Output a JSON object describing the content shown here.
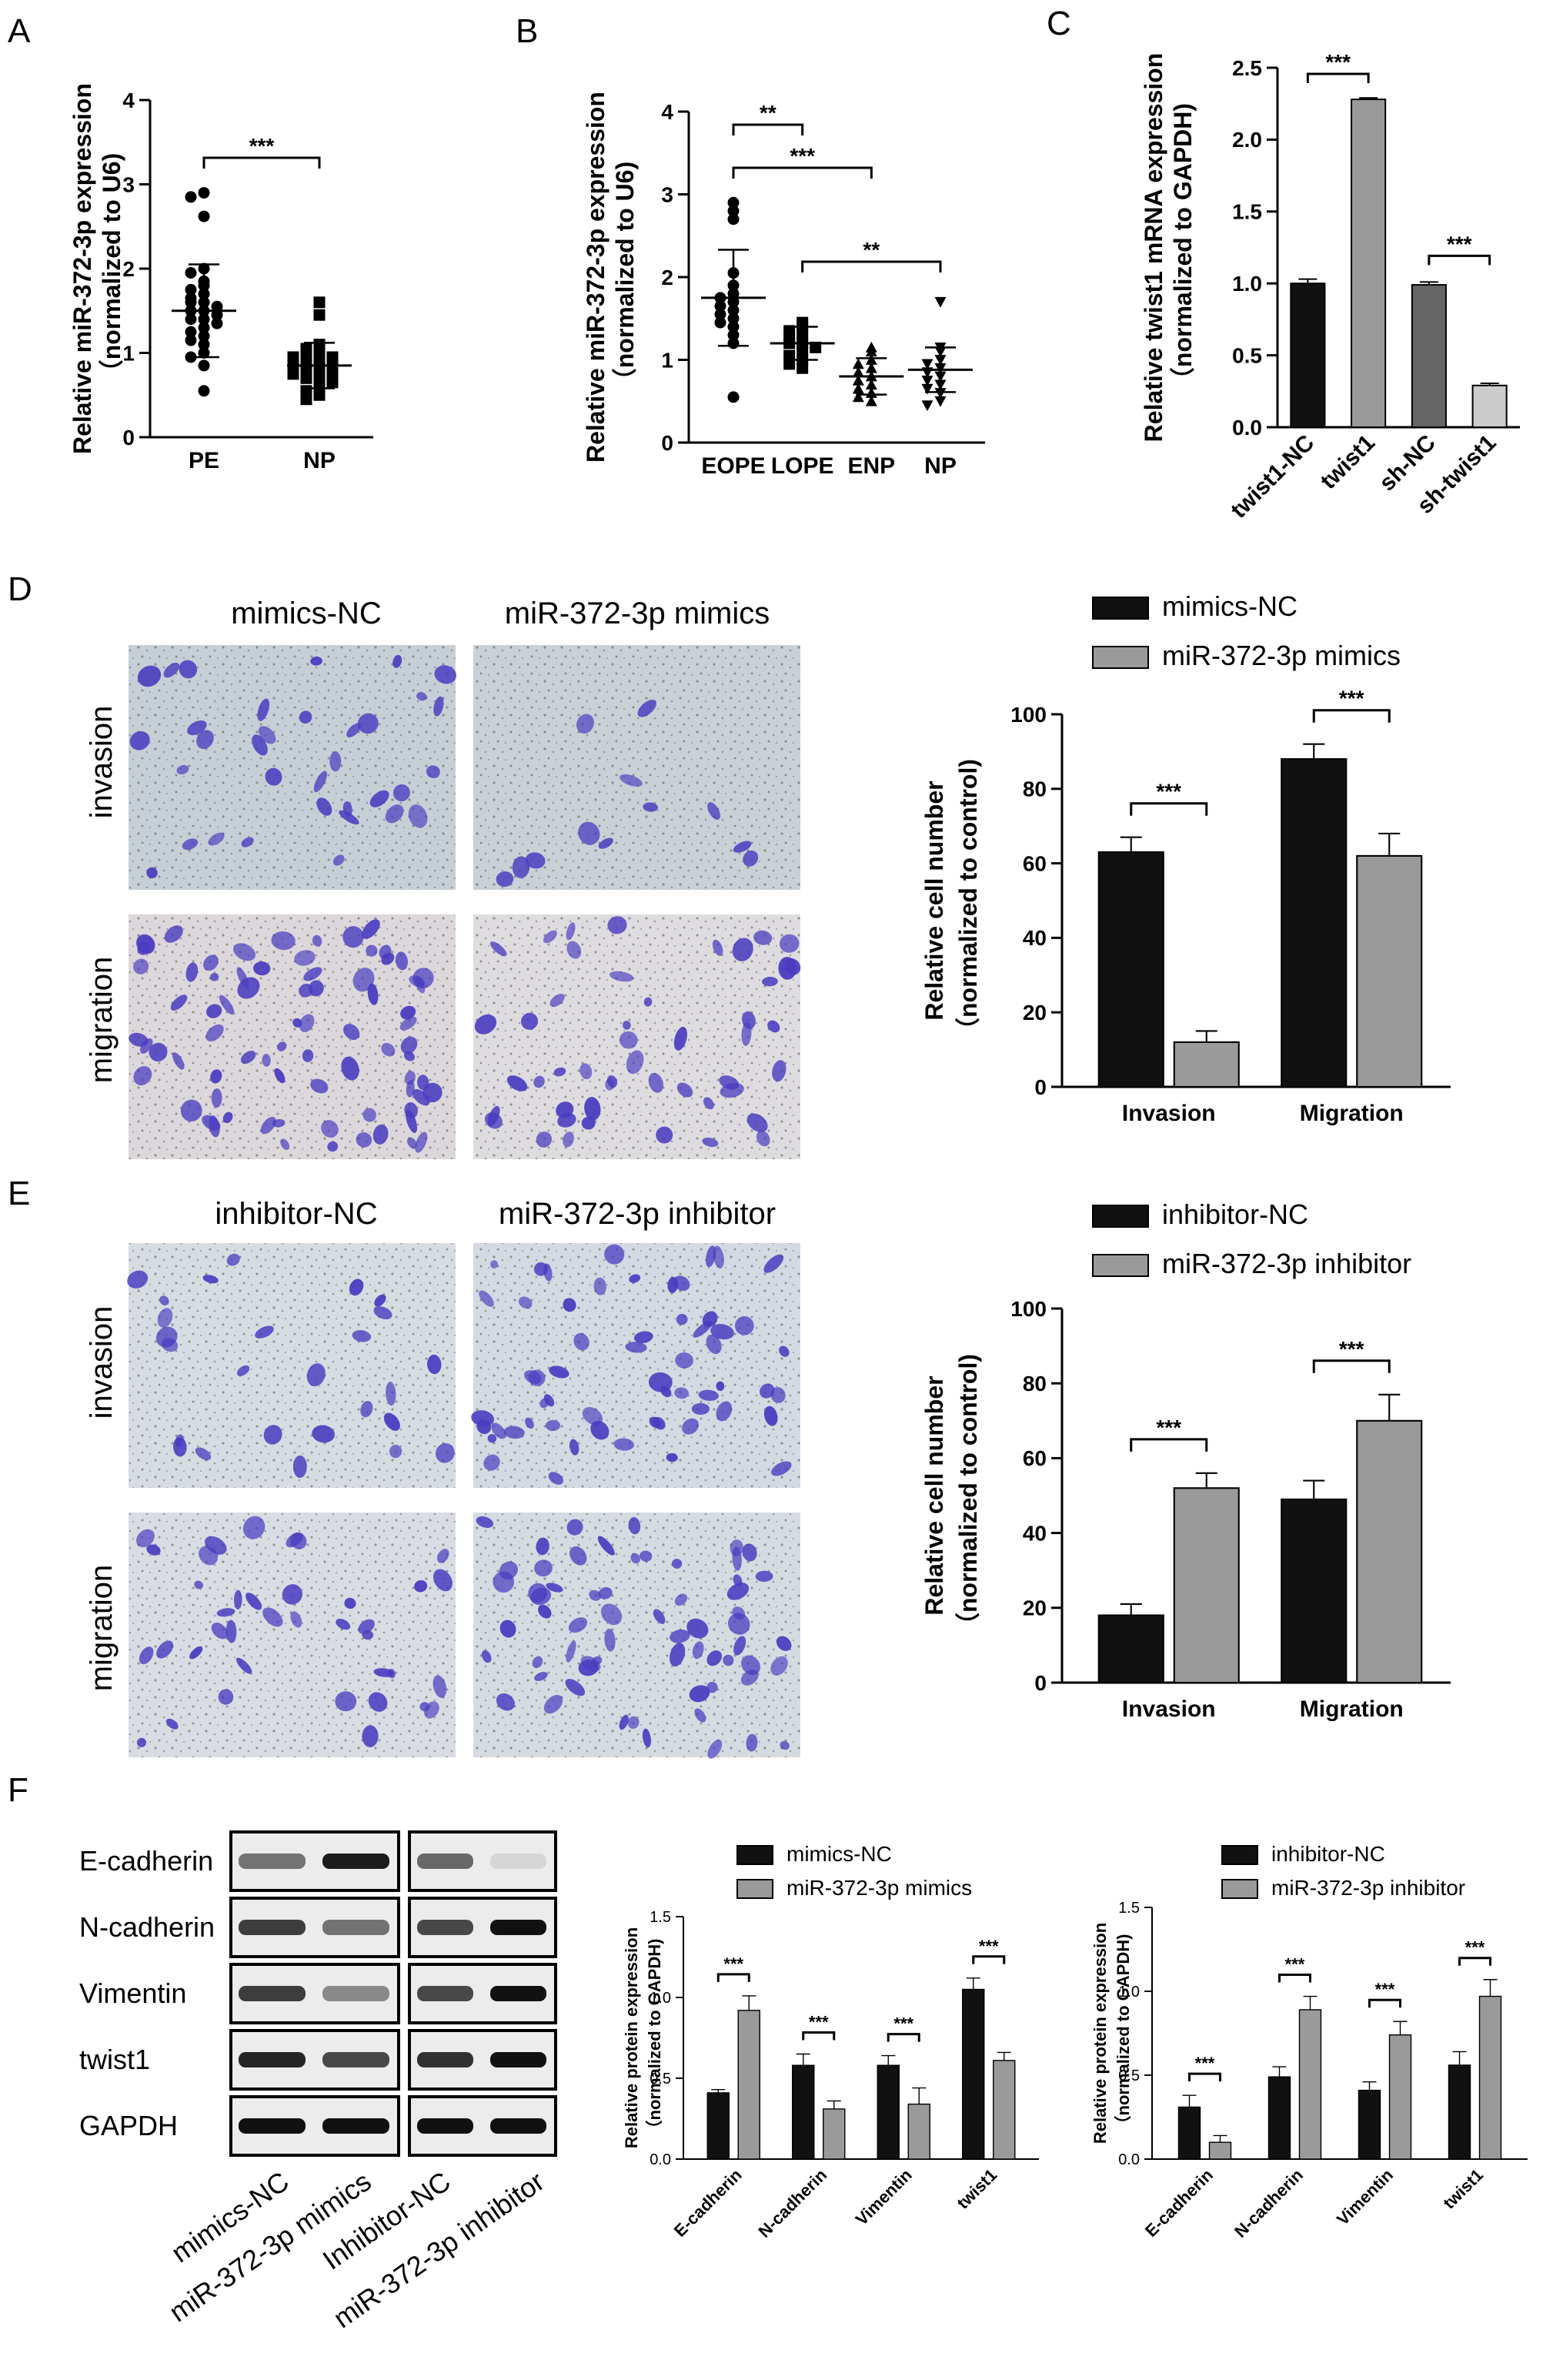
{
  "panel_letters": {
    "A": "A",
    "B": "B",
    "C": "C",
    "D": "D",
    "E": "E",
    "F": "F"
  },
  "colors": {
    "black_bar": "#111111",
    "gray_bar": "#9a9a9a",
    "dark_gray_bar": "#666666",
    "light_gray_bar": "#cccccc",
    "stain": "#4a3cc0"
  },
  "panel_d": {
    "col1": "mimics-NC",
    "col2": "miR-372-3p mimics",
    "row1": "invasion",
    "row2": "migration"
  },
  "panel_e": {
    "col1": "inhibitor-NC",
    "col2": "miR-372-3p inhibitor",
    "row1": "invasion",
    "row2": "migration"
  },
  "panel_f_blot": {
    "rows": [
      "E-cadherin",
      "N-cadherin",
      "Vimentin",
      "twist1",
      "GAPDH"
    ],
    "lanes": [
      "mimics-NC",
      "miR-372-3p mimics",
      "Inhibitor-NC",
      "miR-372-3p inhibitor"
    ]
  },
  "chart_data": [
    {
      "id": "A",
      "type": "scatter",
      "ylabel_line1": "Relative miR-372-3p expression",
      "ylabel_line2": "（normalized to U6)",
      "categories": [
        "PE",
        "NP"
      ],
      "ylim": [
        0,
        4
      ],
      "yticks": [
        0,
        1,
        2,
        3,
        4
      ],
      "groups": [
        {
          "category": "PE",
          "marker": "circle",
          "mean": 1.5,
          "sd": 0.55,
          "values": [
            2.9,
            2.85,
            2.62,
            2.0,
            1.95,
            1.85,
            1.8,
            1.75,
            1.7,
            1.65,
            1.6,
            1.6,
            1.55,
            1.5,
            1.5,
            1.45,
            1.4,
            1.4,
            1.35,
            1.3,
            1.25,
            1.2,
            1.15,
            1.1,
            1.0,
            0.95,
            0.85,
            0.55
          ]
        },
        {
          "category": "NP",
          "marker": "square",
          "mean": 0.85,
          "sd": 0.27,
          "values": [
            1.6,
            1.45,
            1.1,
            1.05,
            1.0,
            1.0,
            0.95,
            0.95,
            0.9,
            0.9,
            0.85,
            0.85,
            0.8,
            0.8,
            0.75,
            0.75,
            0.7,
            0.7,
            0.65,
            0.6,
            0.55,
            0.5,
            0.45
          ]
        }
      ],
      "significance": [
        {
          "from": "PE",
          "to": "NP",
          "label": "***"
        }
      ]
    },
    {
      "id": "B",
      "type": "scatter",
      "ylabel_line1": "Relative miR-372-3p expression",
      "ylabel_line2": "（normalized to U6)",
      "categories": [
        "EOPE",
        "LOPE",
        "ENP",
        "NP"
      ],
      "ylim": [
        0,
        4
      ],
      "yticks": [
        0,
        1,
        2,
        3,
        4
      ],
      "groups": [
        {
          "category": "EOPE",
          "marker": "circle",
          "mean": 1.75,
          "sd": 0.58,
          "values": [
            2.9,
            2.8,
            2.7,
            2.05,
            1.9,
            1.8,
            1.75,
            1.7,
            1.65,
            1.6,
            1.55,
            1.5,
            1.45,
            1.4,
            1.3,
            1.2,
            0.55
          ]
        },
        {
          "category": "LOPE",
          "marker": "square",
          "mean": 1.2,
          "sd": 0.2,
          "values": [
            1.45,
            1.4,
            1.35,
            1.3,
            1.25,
            1.2,
            1.2,
            1.15,
            1.1,
            1.05,
            1.0,
            0.95,
            0.9
          ]
        },
        {
          "category": "ENP",
          "marker": "triangle",
          "mean": 0.8,
          "sd": 0.22,
          "values": [
            1.15,
            1.1,
            1.0,
            0.95,
            0.9,
            0.85,
            0.8,
            0.75,
            0.7,
            0.65,
            0.6,
            0.55,
            0.5
          ]
        },
        {
          "category": "NP",
          "marker": "triangle-down",
          "mean": 0.88,
          "sd": 0.27,
          "values": [
            1.7,
            1.15,
            1.1,
            1.0,
            0.95,
            0.9,
            0.85,
            0.8,
            0.75,
            0.7,
            0.65,
            0.6,
            0.5,
            0.45
          ]
        }
      ],
      "significance": [
        {
          "from": "EOPE",
          "to": "LOPE",
          "label": "**"
        },
        {
          "from": "EOPE",
          "to": "ENP",
          "label": "***"
        },
        {
          "from": "LOPE",
          "to": "NP",
          "label": "**"
        }
      ]
    },
    {
      "id": "C",
      "type": "bar",
      "ylabel_line1": "Relative twist1 mRNA expression",
      "ylabel_line2": "（normalized to GAPDH)",
      "categories": [
        "twist1-NC",
        "twist1",
        "sh-NC",
        "sh-twist1"
      ],
      "values": [
        1.0,
        2.28,
        0.99,
        0.29
      ],
      "errors": [
        0.03,
        0.01,
        0.02,
        0.015
      ],
      "ylim": [
        0,
        2.5
      ],
      "yticks": [
        0.0,
        0.5,
        1.0,
        1.5,
        2.0,
        2.5
      ],
      "significance": [
        {
          "from": 0,
          "to": 1,
          "label": "***"
        },
        {
          "from": 2,
          "to": 3,
          "label": "***"
        }
      ]
    },
    {
      "id": "D",
      "type": "bar",
      "ylabel_line1": "Relative cell number",
      "ylabel_line2": "（normalized to control)",
      "categories": [
        "Invasion",
        "Migration"
      ],
      "series": [
        {
          "name": "mimics-NC",
          "values": [
            63,
            88
          ],
          "errors": [
            4,
            4
          ]
        },
        {
          "name": "miR-372-3p mimics",
          "values": [
            12,
            62
          ],
          "errors": [
            3,
            6
          ]
        }
      ],
      "ylim": [
        0,
        100
      ],
      "yticks": [
        0,
        20,
        40,
        60,
        80,
        100
      ],
      "legend": "top",
      "significance": [
        {
          "category": "Invasion",
          "label": "***"
        },
        {
          "category": "Migration",
          "label": "***"
        }
      ]
    },
    {
      "id": "E",
      "type": "bar",
      "ylabel_line1": "Relative cell number",
      "ylabel_line2": "（normalized to control)",
      "categories": [
        "Invasion",
        "Migration"
      ],
      "series": [
        {
          "name": "inhibitor-NC",
          "values": [
            18,
            49
          ],
          "errors": [
            3,
            5
          ]
        },
        {
          "name": "miR-372-3p inhibitor",
          "values": [
            52,
            70
          ],
          "errors": [
            4,
            7
          ]
        }
      ],
      "ylim": [
        0,
        100
      ],
      "yticks": [
        0,
        20,
        40,
        60,
        80,
        100
      ],
      "legend": "top",
      "significance": [
        {
          "category": "Invasion",
          "label": "***"
        },
        {
          "category": "Migration",
          "label": "***"
        }
      ]
    },
    {
      "id": "F1",
      "type": "bar",
      "ylabel_line1": "Relative protein expression",
      "ylabel_line2": "（normalized to GAPDH)",
      "categories": [
        "E-cadherin",
        "N-cadherin",
        "Vimentin",
        "twist1"
      ],
      "series": [
        {
          "name": "mimics-NC",
          "values": [
            0.41,
            0.58,
            0.58,
            1.05
          ],
          "errors": [
            0.02,
            0.07,
            0.06,
            0.07
          ]
        },
        {
          "name": "miR-372-3p mimics",
          "values": [
            0.92,
            0.31,
            0.34,
            0.61
          ],
          "errors": [
            0.09,
            0.05,
            0.1,
            0.05
          ]
        }
      ],
      "ylim": [
        0,
        1.5
      ],
      "yticks": [
        0.0,
        0.5,
        1.0,
        1.5
      ],
      "legend": "top",
      "significance": [
        {
          "category": "E-cadherin",
          "label": "***"
        },
        {
          "category": "N-cadherin",
          "label": "***"
        },
        {
          "category": "Vimentin",
          "label": "***"
        },
        {
          "category": "twist1",
          "label": "***"
        }
      ]
    },
    {
      "id": "F2",
      "type": "bar",
      "ylabel_line1": "Relative protein expression",
      "ylabel_line2": "（normalized to GAPDH)",
      "categories": [
        "E-cadherin",
        "N-cadherin",
        "Vimentin",
        "twist1"
      ],
      "series": [
        {
          "name": "inhibitor-NC",
          "values": [
            0.31,
            0.49,
            0.41,
            0.56
          ],
          "errors": [
            0.07,
            0.06,
            0.05,
            0.08
          ]
        },
        {
          "name": "miR-372-3p inhibitor",
          "values": [
            0.1,
            0.89,
            0.74,
            0.97
          ],
          "errors": [
            0.04,
            0.08,
            0.08,
            0.1
          ]
        }
      ],
      "ylim": [
        0,
        1.5
      ],
      "yticks": [
        0.0,
        0.5,
        1.0,
        1.5
      ],
      "legend": "top",
      "significance": [
        {
          "category": "E-cadherin",
          "label": "***"
        },
        {
          "category": "N-cadherin",
          "label": "***"
        },
        {
          "category": "Vimentin",
          "label": "***"
        },
        {
          "category": "twist1",
          "label": "***"
        }
      ]
    }
  ]
}
